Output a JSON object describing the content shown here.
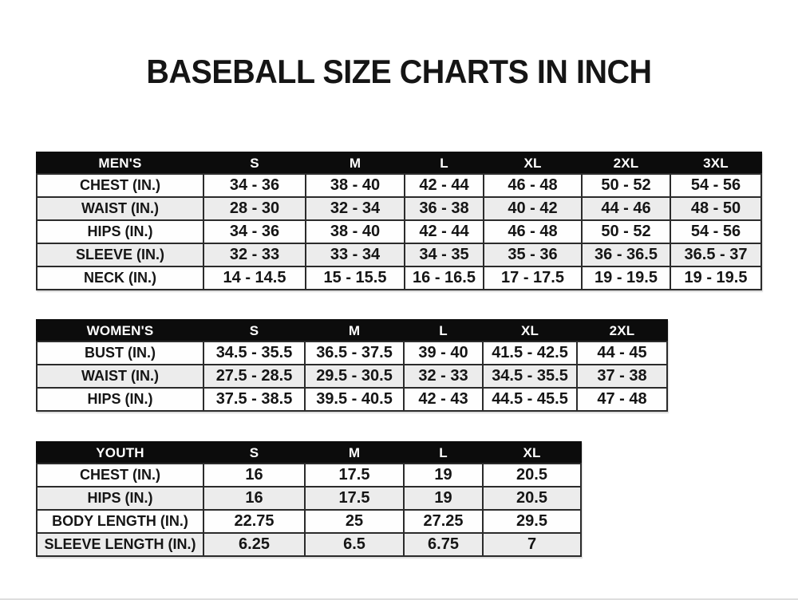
{
  "title": "BASEBALL SIZE CHARTS IN INCH",
  "colors": {
    "header_bg": "#0c0c0c",
    "header_text": "#ffffff",
    "row_alt_bg": "#ececec",
    "row_bg": "#fefefe",
    "border": "#2b2b2b",
    "text": "#151515",
    "page_bg": "#ffffff"
  },
  "tables": [
    {
      "name": "mens",
      "header": [
        "MEN'S",
        "S",
        "M",
        "L",
        "XL",
        "2XL",
        "3XL"
      ],
      "rows": [
        {
          "label": "CHEST (IN.)",
          "values": [
            "34 - 36",
            "38 - 40",
            "42 - 44",
            "46 - 48",
            "50 - 52",
            "54 - 56"
          ]
        },
        {
          "label": "WAIST (IN.)",
          "values": [
            "28 - 30",
            "32 - 34",
            "36 - 38",
            "40 - 42",
            "44 - 46",
            "48 - 50"
          ]
        },
        {
          "label": "HIPS (IN.)",
          "values": [
            "34 - 36",
            "38 - 40",
            "42 - 44",
            "46 - 48",
            "50 - 52",
            "54 - 56"
          ]
        },
        {
          "label": "SLEEVE (IN.)",
          "values": [
            "32 - 33",
            "33 - 34",
            "34 - 35",
            "35 - 36",
            "36 - 36.5",
            "36.5 - 37"
          ]
        },
        {
          "label": "NECK (IN.)",
          "values": [
            "14 - 14.5",
            "15 - 15.5",
            "16 - 16.5",
            "17 - 17.5",
            "19 - 19.5",
            "19 - 19.5"
          ]
        }
      ]
    },
    {
      "name": "womens",
      "header": [
        "WOMEN'S",
        "S",
        "M",
        "L",
        "XL",
        "2XL"
      ],
      "rows": [
        {
          "label": "BUST (IN.)",
          "values": [
            "34.5 - 35.5",
            "36.5 - 37.5",
            "39 - 40",
            "41.5 - 42.5",
            "44 - 45"
          ]
        },
        {
          "label": "WAIST (IN.)",
          "values": [
            "27.5 - 28.5",
            "29.5 - 30.5",
            "32 - 33",
            "34.5 - 35.5",
            "37 - 38"
          ]
        },
        {
          "label": "HIPS (IN.)",
          "values": [
            "37.5 - 38.5",
            "39.5 - 40.5",
            "42 - 43",
            "44.5 - 45.5",
            "47 - 48"
          ]
        }
      ]
    },
    {
      "name": "youth",
      "header": [
        "YOUTH",
        "S",
        "M",
        "L",
        "XL"
      ],
      "rows": [
        {
          "label": "CHEST (IN.)",
          "values": [
            "16",
            "17.5",
            "19",
            "20.5"
          ]
        },
        {
          "label": "HIPS (IN.)",
          "values": [
            "16",
            "17.5",
            "19",
            "20.5"
          ]
        },
        {
          "label": "BODY LENGTH (IN.)",
          "values": [
            "22.75",
            "25",
            "27.25",
            "29.5"
          ]
        },
        {
          "label": "SLEEVE LENGTH (IN.)",
          "values": [
            "6.25",
            "6.5",
            "6.75",
            "7"
          ]
        }
      ]
    }
  ]
}
